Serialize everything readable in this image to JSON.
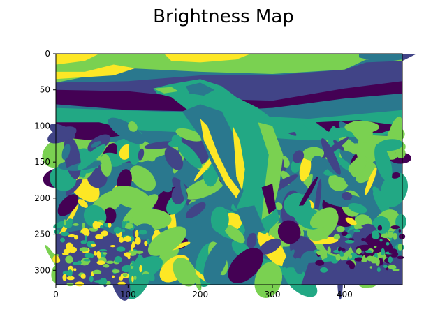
{
  "chart_data": {
    "type": "heatmap",
    "title": "Brightness Map",
    "xlabel": "",
    "ylabel": "",
    "xlim": [
      0,
      480
    ],
    "ylim": [
      320,
      0
    ],
    "x_ticks": [
      0,
      100,
      200,
      300,
      400
    ],
    "y_ticks": [
      0,
      50,
      100,
      150,
      200,
      250,
      300
    ],
    "colormap": "viridis",
    "levels": 6,
    "grid": false,
    "legend": "none",
    "palette": [
      "#440154",
      "#414487",
      "#2a788e",
      "#22a884",
      "#7ad151",
      "#fde725"
    ]
  }
}
